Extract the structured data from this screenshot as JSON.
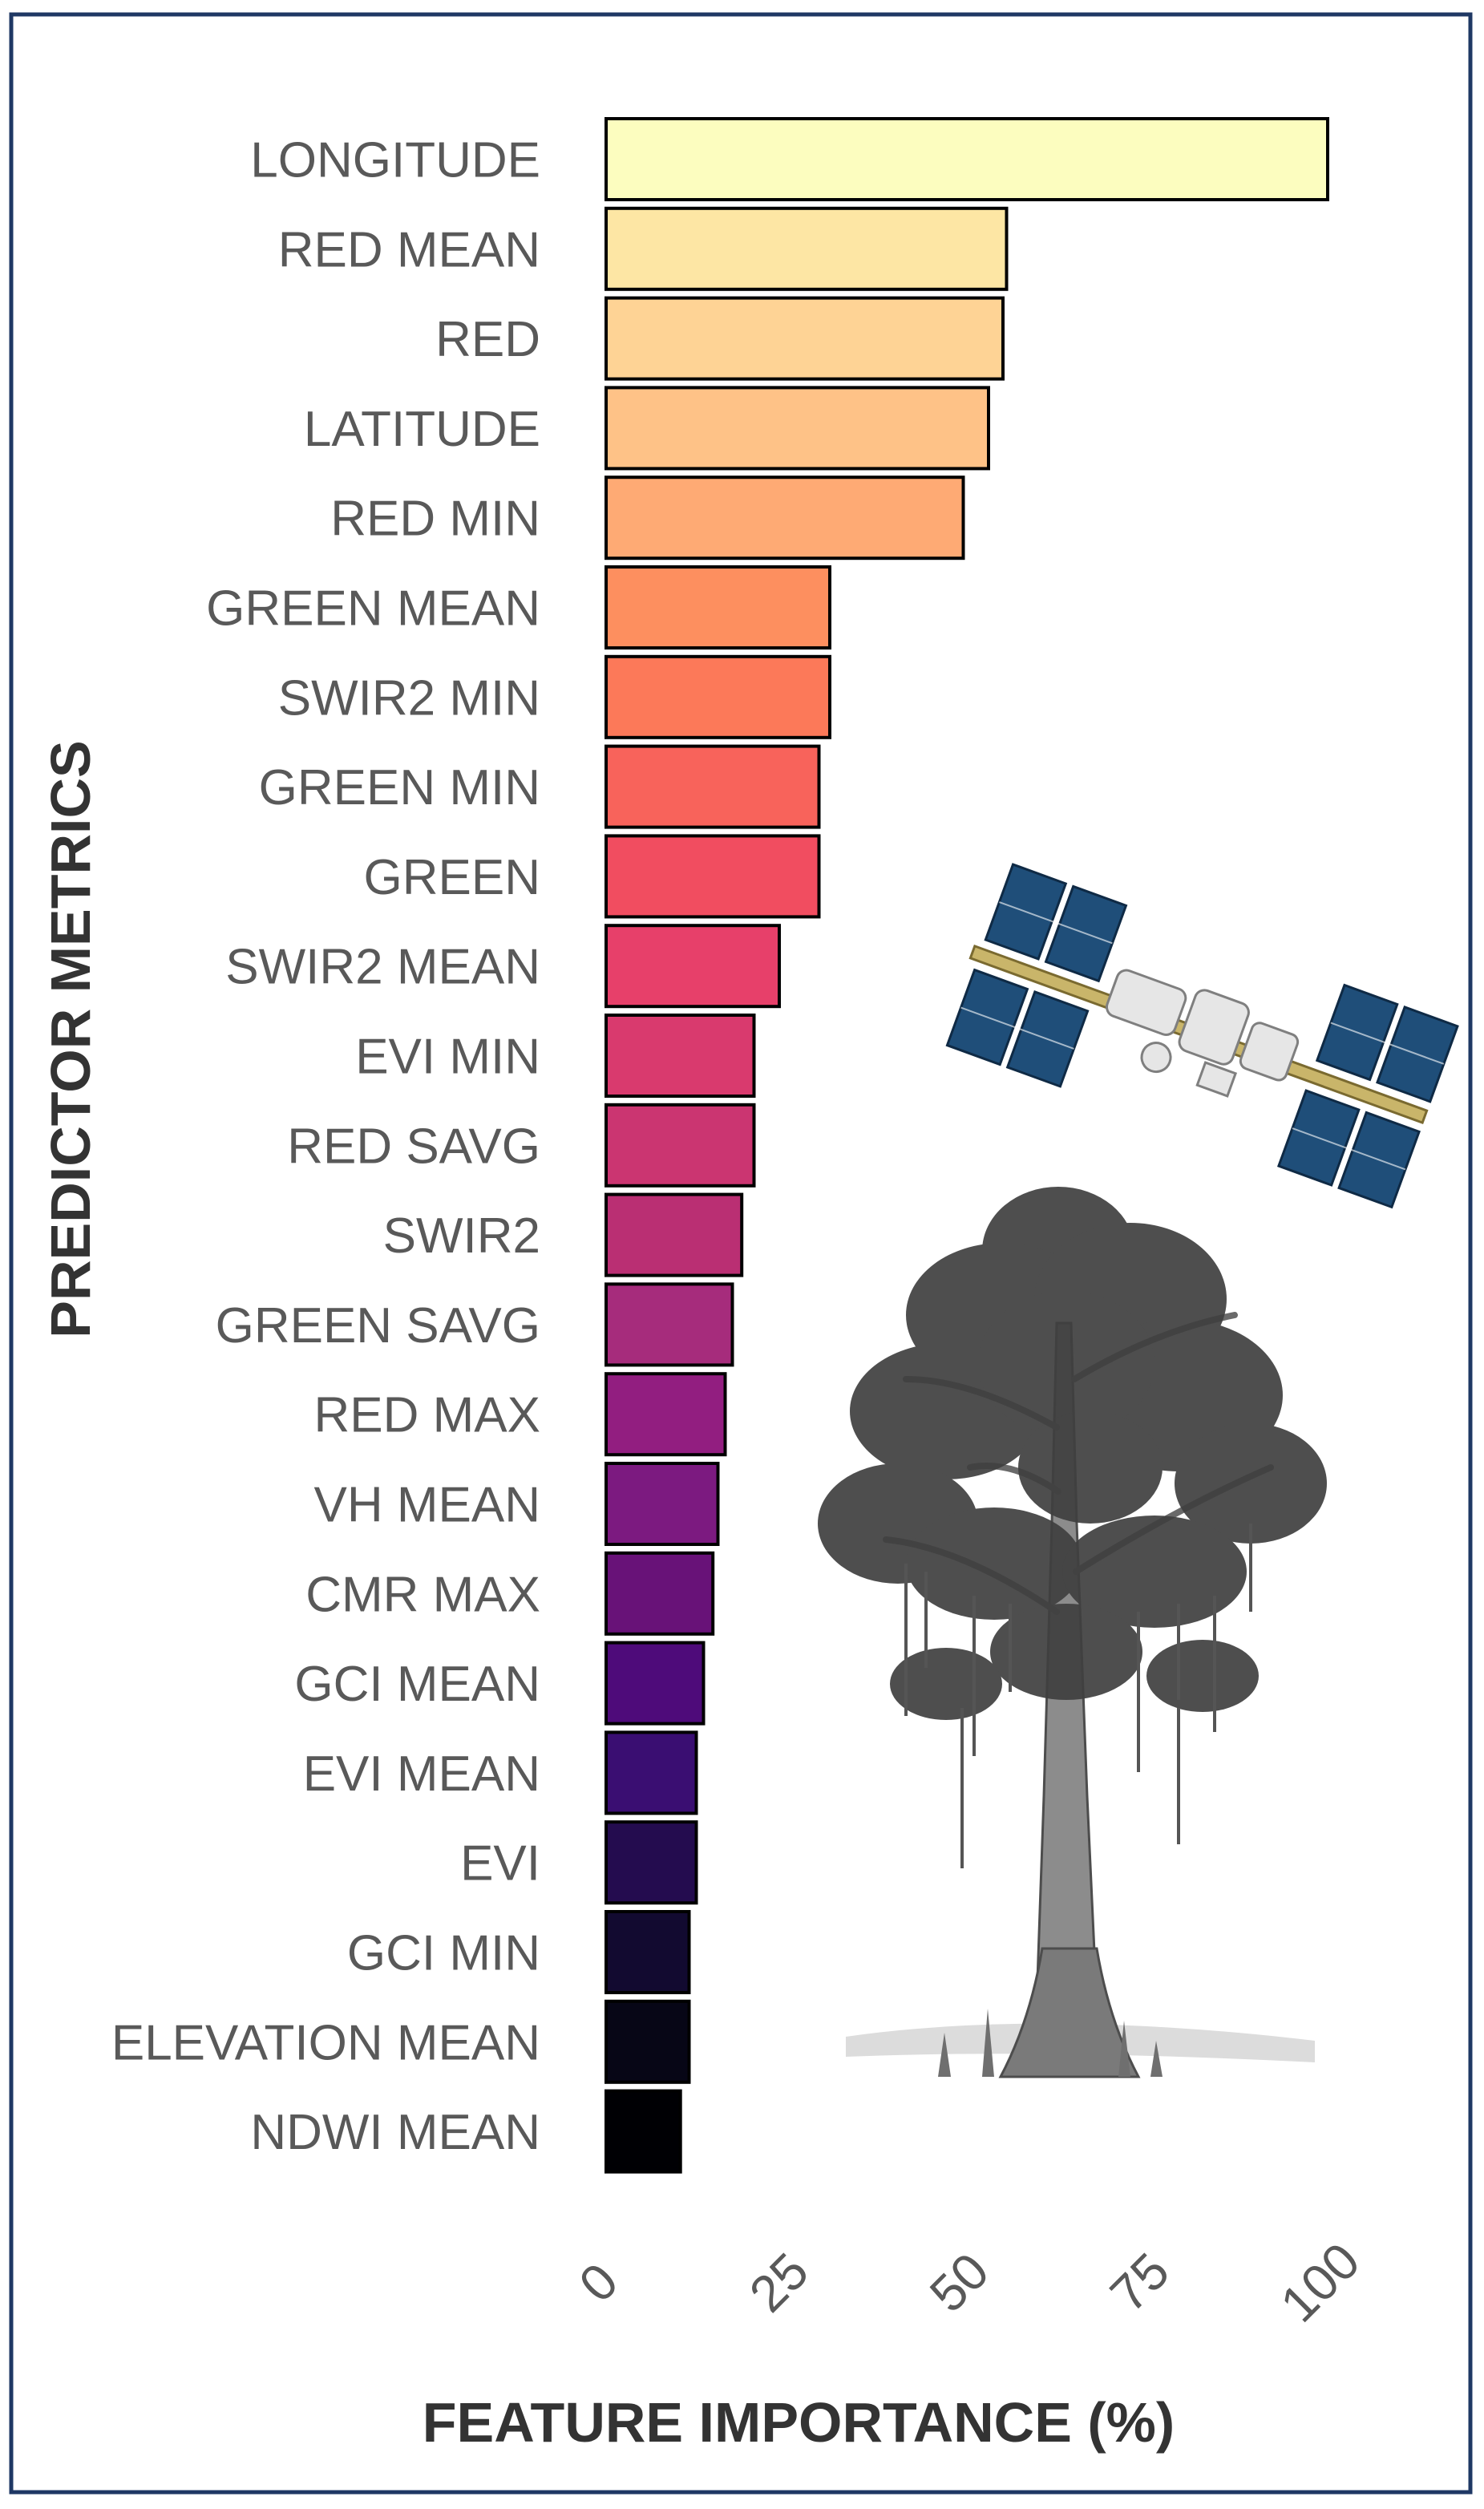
{
  "chart_data": {
    "type": "bar",
    "orientation": "horizontal",
    "categories": [
      "LONGITUDE",
      "RED MEAN",
      "RED",
      "LATITUDE",
      "RED MIN",
      "GREEN MEAN",
      "SWIR2 MIN",
      "GREEN MIN",
      "GREEN",
      "SWIR2 MEAN",
      "EVI MIN",
      "RED SAVG",
      "SWIR2",
      "GREEN SAVG",
      "RED MAX",
      "VH MEAN",
      "CMR MAX",
      "GCI MEAN",
      "EVI MEAN",
      "EVI",
      "GCI MIN",
      "ELEVATION MEAN",
      "NDWI MEAN"
    ],
    "values": [
      100,
      55.5,
      55,
      53,
      49.5,
      31,
      31,
      29.5,
      29.5,
      24,
      20.5,
      20.5,
      18.8,
      17.5,
      16.5,
      15.5,
      14.8,
      13.5,
      12.5,
      12.5,
      11.5,
      11.5,
      10.3
    ],
    "colors": [
      "#FCFDBF",
      "#FDE6A4",
      "#FED395",
      "#FEC287",
      "#FEAA74",
      "#FD8F5F",
      "#FC7959",
      "#F8635B",
      "#F14D60",
      "#E7406A",
      "#D93A6E",
      "#CB3571",
      "#BA2F73",
      "#A62C7C",
      "#921E80",
      "#7C1A80",
      "#681278",
      "#4E0B7A",
      "#3A0E72",
      "#240C4F",
      "#120A30",
      "#070616",
      "#000004"
    ],
    "xlabel": "FEATURE IMPORTANCE (%)",
    "ylabel": "PREDICTOR METRICS",
    "xticks": [
      "0",
      "25",
      "50",
      "75",
      "100"
    ],
    "xlim": [
      0,
      100
    ],
    "grid": false,
    "legend": "none"
  },
  "figure": {
    "frame_color": "#1F3864",
    "bar_outline": "#000000",
    "illustrations": [
      "satellite-station-illustration",
      "cypress-tree-illustration"
    ]
  }
}
